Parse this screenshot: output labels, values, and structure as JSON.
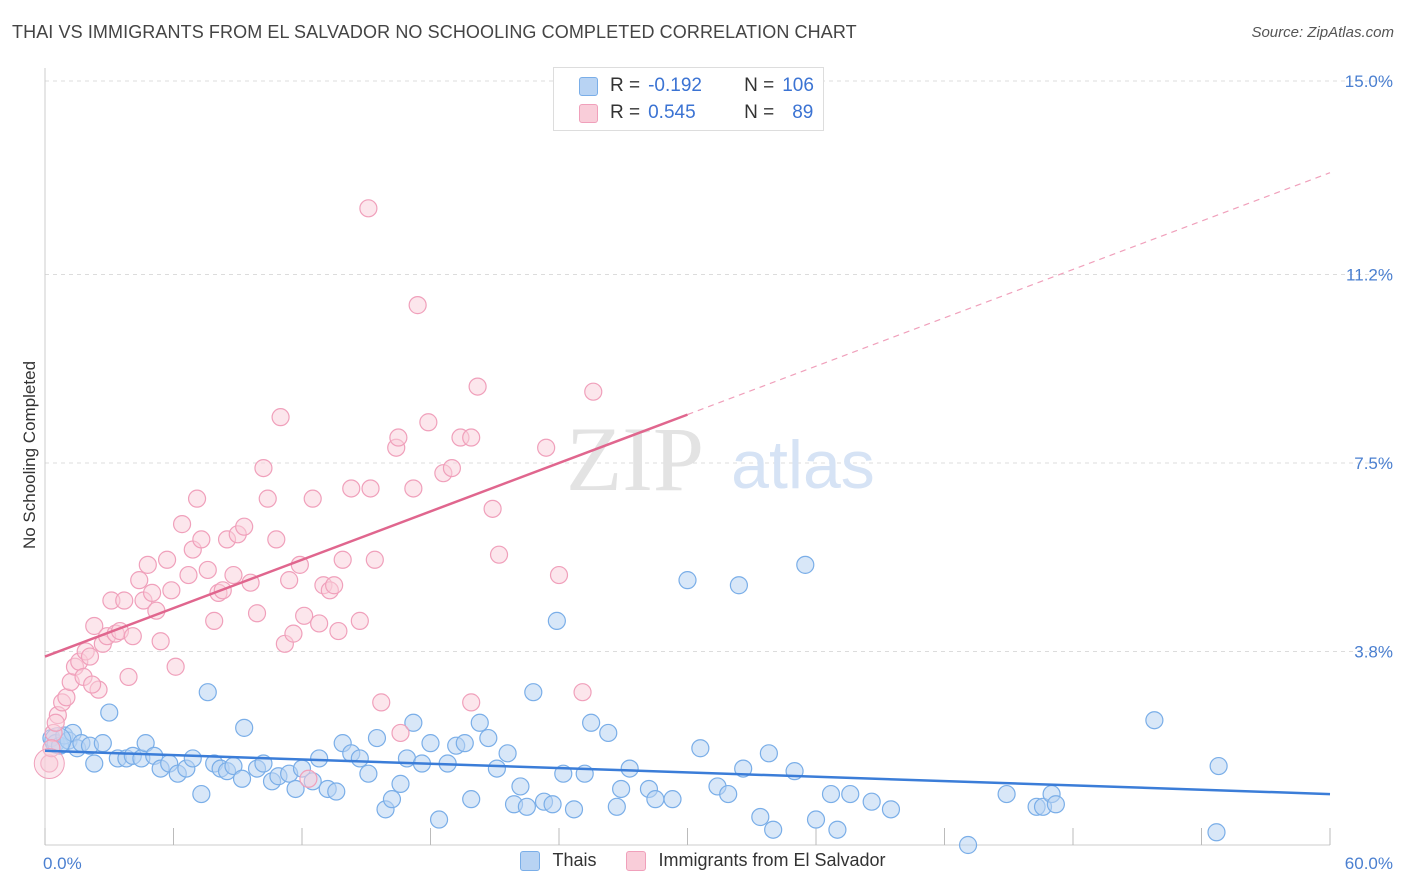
{
  "header": {
    "title": "THAI VS IMMIGRANTS FROM EL SALVADOR NO SCHOOLING COMPLETED CORRELATION CHART",
    "source": "Source: ZipAtlas.com"
  },
  "watermark": {
    "zip": "ZIP",
    "atlas": "atlas"
  },
  "colors": {
    "blue": "#7aaee8",
    "blue_fill": "#b8d3f3",
    "blue_line": "#3b7dd8",
    "pink": "#f0a0bb",
    "pink_fill": "#f9cdd9",
    "pink_line": "#e0668e",
    "axis_label": "#4a7fd0"
  },
  "stats": {
    "rows": [
      {
        "r_label": "R =",
        "r_value": "-0.192",
        "n_label": "N =",
        "n_value": "106"
      },
      {
        "r_label": "R =",
        "r_value": "0.545",
        "n_label": "N =",
        "n_value": "89"
      }
    ]
  },
  "legend": {
    "items": [
      {
        "label": "Thais"
      },
      {
        "label": "Immigrants from El Salvador"
      }
    ]
  },
  "chart_data": {
    "type": "scatter",
    "title": "THAI VS IMMIGRANTS FROM EL SALVADOR NO SCHOOLING COMPLETED CORRELATION CHART",
    "xlabel": "",
    "ylabel": "No Schooling Completed",
    "xlim": [
      0,
      60
    ],
    "ylim": [
      0,
      15
    ],
    "x_tick_labels": [
      "0.0%",
      "60.0%"
    ],
    "y_ticks": [
      3.8,
      7.5,
      11.2,
      15.0
    ],
    "y_tick_labels": [
      "3.8%",
      "7.5%",
      "11.2%",
      "15.0%"
    ],
    "grid": true,
    "series": [
      {
        "name": "Thais",
        "color": "#7aaee8",
        "r": -0.192,
        "n": 106,
        "trend": {
          "x0": 0,
          "y0": 1.85,
          "x1": 60,
          "y1": 1.0
        },
        "points": [
          [
            0.3,
            2.1
          ],
          [
            0.5,
            2.0
          ],
          [
            0.7,
            1.95
          ],
          [
            0.9,
            2.15
          ],
          [
            1.1,
            2.05
          ],
          [
            1.3,
            2.2
          ],
          [
            1.5,
            1.9
          ],
          [
            1.7,
            2.0
          ],
          [
            2.1,
            1.95
          ],
          [
            2.3,
            1.6
          ],
          [
            2.7,
            2.0
          ],
          [
            3.0,
            2.6
          ],
          [
            3.4,
            1.7
          ],
          [
            3.8,
            1.7
          ],
          [
            4.1,
            1.75
          ],
          [
            4.5,
            1.7
          ],
          [
            4.7,
            2.0
          ],
          [
            5.1,
            1.75
          ],
          [
            5.4,
            1.5
          ],
          [
            5.8,
            1.6
          ],
          [
            6.2,
            1.4
          ],
          [
            6.6,
            1.5
          ],
          [
            6.9,
            1.7
          ],
          [
            7.3,
            1.0
          ],
          [
            7.6,
            3.0
          ],
          [
            7.9,
            1.6
          ],
          [
            8.2,
            1.5
          ],
          [
            8.5,
            1.45
          ],
          [
            8.8,
            1.55
          ],
          [
            9.2,
            1.3
          ],
          [
            9.3,
            2.3
          ],
          [
            9.9,
            1.5
          ],
          [
            10.2,
            1.6
          ],
          [
            10.6,
            1.25
          ],
          [
            10.9,
            1.35
          ],
          [
            11.4,
            1.4
          ],
          [
            11.7,
            1.1
          ],
          [
            12.0,
            1.5
          ],
          [
            12.5,
            1.25
          ],
          [
            12.8,
            1.7
          ],
          [
            13.2,
            1.1
          ],
          [
            13.6,
            1.05
          ],
          [
            13.9,
            2.0
          ],
          [
            14.3,
            1.8
          ],
          [
            14.7,
            1.7
          ],
          [
            15.1,
            1.4
          ],
          [
            15.5,
            2.1
          ],
          [
            15.9,
            0.7
          ],
          [
            16.2,
            0.9
          ],
          [
            16.6,
            1.2
          ],
          [
            16.9,
            1.7
          ],
          [
            17.2,
            2.4
          ],
          [
            17.6,
            1.6
          ],
          [
            18.0,
            2.0
          ],
          [
            18.4,
            0.5
          ],
          [
            18.8,
            1.6
          ],
          [
            19.2,
            1.95
          ],
          [
            19.6,
            2.0
          ],
          [
            19.9,
            0.9
          ],
          [
            20.3,
            2.4
          ],
          [
            20.7,
            2.1
          ],
          [
            21.1,
            1.5
          ],
          [
            21.6,
            1.8
          ],
          [
            21.9,
            0.8
          ],
          [
            22.2,
            1.15
          ],
          [
            22.5,
            0.75
          ],
          [
            22.8,
            3.0
          ],
          [
            23.3,
            0.85
          ],
          [
            23.7,
            0.8
          ],
          [
            23.9,
            4.4
          ],
          [
            24.2,
            1.4
          ],
          [
            24.7,
            0.7
          ],
          [
            25.2,
            1.4
          ],
          [
            25.5,
            2.4
          ],
          [
            26.3,
            2.2
          ],
          [
            26.7,
            0.75
          ],
          [
            26.9,
            1.1
          ],
          [
            27.3,
            1.5
          ],
          [
            28.2,
            1.1
          ],
          [
            28.5,
            0.9
          ],
          [
            29.3,
            0.9
          ],
          [
            30.0,
            5.2
          ],
          [
            30.6,
            1.9
          ],
          [
            31.4,
            1.15
          ],
          [
            31.9,
            1.0
          ],
          [
            32.4,
            5.1
          ],
          [
            32.6,
            1.5
          ],
          [
            33.4,
            0.55
          ],
          [
            33.8,
            1.8
          ],
          [
            34.0,
            0.3
          ],
          [
            35.0,
            1.45
          ],
          [
            35.5,
            5.5
          ],
          [
            36.0,
            0.5
          ],
          [
            36.7,
            1.0
          ],
          [
            37.0,
            0.3
          ],
          [
            37.6,
            1.0
          ],
          [
            38.6,
            0.85
          ],
          [
            39.5,
            0.7
          ],
          [
            43.1,
            0.0
          ],
          [
            44.9,
            1.0
          ],
          [
            46.3,
            0.75
          ],
          [
            46.6,
            0.75
          ],
          [
            47.0,
            1.0
          ],
          [
            47.2,
            0.8
          ],
          [
            51.8,
            2.45
          ],
          [
            54.8,
            1.55
          ],
          [
            54.7,
            0.25
          ]
        ]
      },
      {
        "name": "Immigrants from El Salvador",
        "color": "#f0a0bb",
        "r": 0.545,
        "n": 89,
        "trend": {
          "x0": 0,
          "y0": 3.7,
          "x1": 30,
          "y1": 8.45
        },
        "trend_extension": {
          "x0": 30,
          "y0": 8.45,
          "x1": 60,
          "y1": 13.2
        },
        "points": [
          [
            0.2,
            1.6
          ],
          [
            0.4,
            2.2
          ],
          [
            0.6,
            2.55
          ],
          [
            0.8,
            2.8
          ],
          [
            1.0,
            2.9
          ],
          [
            1.2,
            3.2
          ],
          [
            1.4,
            3.5
          ],
          [
            1.6,
            3.6
          ],
          [
            1.8,
            3.3
          ],
          [
            1.9,
            3.8
          ],
          [
            2.1,
            3.7
          ],
          [
            2.3,
            4.3
          ],
          [
            2.5,
            3.05
          ],
          [
            2.7,
            3.95
          ],
          [
            2.9,
            4.1
          ],
          [
            3.1,
            4.8
          ],
          [
            3.3,
            4.15
          ],
          [
            3.5,
            4.2
          ],
          [
            3.7,
            4.8
          ],
          [
            3.9,
            3.3
          ],
          [
            4.1,
            4.1
          ],
          [
            4.4,
            5.2
          ],
          [
            4.6,
            4.8
          ],
          [
            4.8,
            5.5
          ],
          [
            5.0,
            4.95
          ],
          [
            5.2,
            4.6
          ],
          [
            5.4,
            4.0
          ],
          [
            5.7,
            5.6
          ],
          [
            5.9,
            5.0
          ],
          [
            6.1,
            3.5
          ],
          [
            6.4,
            6.3
          ],
          [
            6.7,
            5.3
          ],
          [
            6.9,
            5.8
          ],
          [
            7.1,
            6.8
          ],
          [
            7.3,
            6.0
          ],
          [
            7.6,
            5.4
          ],
          [
            7.9,
            4.4
          ],
          [
            8.1,
            4.95
          ],
          [
            8.3,
            5.0
          ],
          [
            8.5,
            6.0
          ],
          [
            8.8,
            5.3
          ],
          [
            9.0,
            6.1
          ],
          [
            9.3,
            6.25
          ],
          [
            9.6,
            5.15
          ],
          [
            9.9,
            4.55
          ],
          [
            10.2,
            7.4
          ],
          [
            10.4,
            6.8
          ],
          [
            10.8,
            6.0
          ],
          [
            11.0,
            8.4
          ],
          [
            11.2,
            3.95
          ],
          [
            11.4,
            5.2
          ],
          [
            11.6,
            4.15
          ],
          [
            11.9,
            5.5
          ],
          [
            12.1,
            4.5
          ],
          [
            12.3,
            1.3
          ],
          [
            12.5,
            6.8
          ],
          [
            12.8,
            4.35
          ],
          [
            13.0,
            5.1
          ],
          [
            13.3,
            5.0
          ],
          [
            13.5,
            5.1
          ],
          [
            13.7,
            4.2
          ],
          [
            13.9,
            5.6
          ],
          [
            14.3,
            7.0
          ],
          [
            14.7,
            4.4
          ],
          [
            15.1,
            12.5
          ],
          [
            15.2,
            7.0
          ],
          [
            15.4,
            5.6
          ],
          [
            15.7,
            2.8
          ],
          [
            16.4,
            7.8
          ],
          [
            16.5,
            8.0
          ],
          [
            16.6,
            2.2
          ],
          [
            17.2,
            7.0
          ],
          [
            17.4,
            10.6
          ],
          [
            17.9,
            8.3
          ],
          [
            18.6,
            7.3
          ],
          [
            19.0,
            7.4
          ],
          [
            19.4,
            8.0
          ],
          [
            19.9,
            8.0
          ],
          [
            19.9,
            2.8
          ],
          [
            20.2,
            9.0
          ],
          [
            20.9,
            6.6
          ],
          [
            21.2,
            5.7
          ],
          [
            23.4,
            7.8
          ],
          [
            24.0,
            5.3
          ],
          [
            25.1,
            3.0
          ],
          [
            25.6,
            8.9
          ],
          [
            0.5,
            2.4
          ],
          [
            0.3,
            1.9
          ],
          [
            2.2,
            3.15
          ]
        ]
      }
    ]
  }
}
